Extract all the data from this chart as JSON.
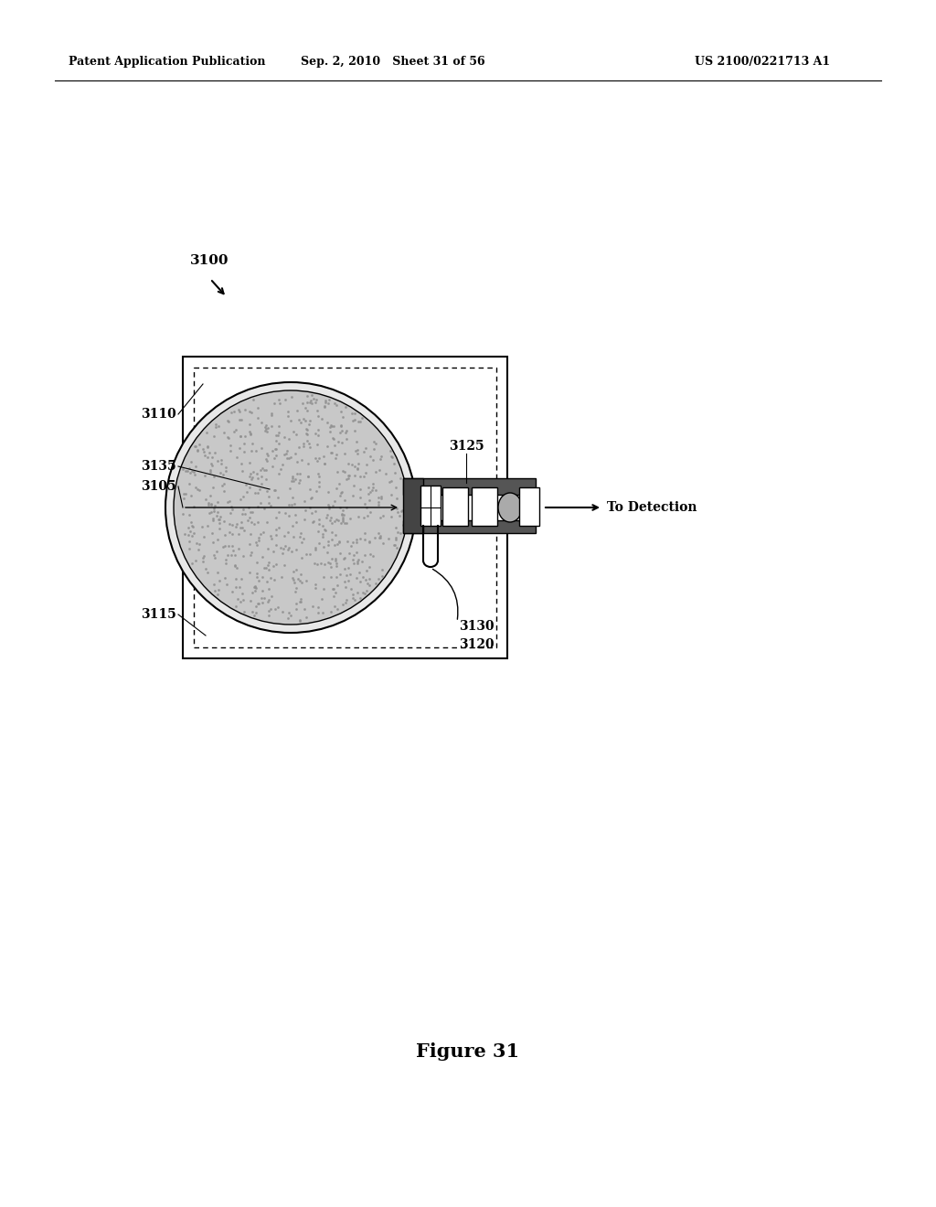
{
  "bg_color": "#ffffff",
  "header_left": "Patent Application Publication",
  "header_mid": "Sep. 2, 2010   Sheet 31 of 56",
  "header_right": "US 2100/0221713 A1",
  "figure_label": "Figure 31",
  "ref_3100": "3100",
  "ref_3110": "3110",
  "ref_3115": "3115",
  "ref_3135": "3135",
  "ref_3105": "3105",
  "ref_3125": "3125",
  "ref_3130": "3130",
  "ref_3120": "3120",
  "to_detection": "To Detection"
}
